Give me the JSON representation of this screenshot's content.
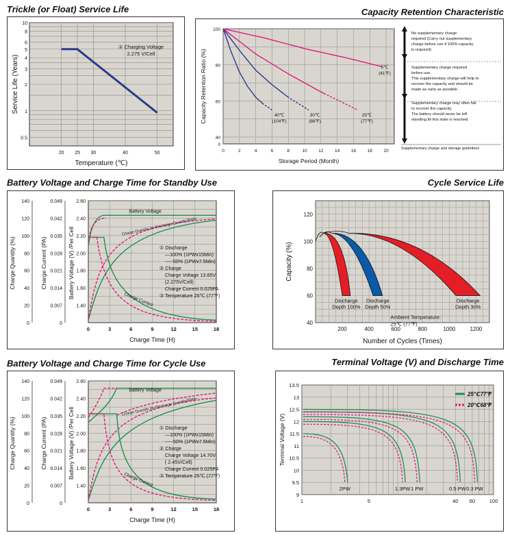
{
  "colors": {
    "plot_bg": "#d9d6cf",
    "grid": "#888888",
    "blue": "#2b3a8c",
    "pink": "#e0197d",
    "green": "#1f8f4e",
    "red": "#e41e26",
    "cs_blue": "#0a5aa8"
  },
  "titles": {
    "trickle": "Trickle (or Float) Service Life",
    "retention": "Capacity Retention Characteristic",
    "standby": "Battery Voltage and Charge Time for Standby Use",
    "cyclelife": "Cycle Service Life",
    "cycleuse": "Battery Voltage and Charge Time for Cycle Use",
    "terminal": "Terminal Voltage (V) and Discharge Time"
  },
  "chart_data": [
    {
      "id": "trickle",
      "type": "line",
      "title": "Trickle (or Float) Service Life",
      "xlabel": "Temperature (℃)",
      "ylabel": "Service Life (Years)",
      "xticks": [
        "20",
        "25",
        "30",
        "40",
        "50"
      ],
      "yticks": [
        "10",
        "8",
        "6",
        "5",
        "4",
        "3",
        "2",
        "1",
        "0.5"
      ],
      "ylim": [
        0.4,
        10
      ],
      "yscale": "log",
      "x": [
        20,
        25,
        50
      ],
      "y": [
        5,
        5,
        0.95
      ],
      "annotation": {
        "marker": "①",
        "line1": "Charging Voltage",
        "line2": "2.275 V/Cell"
      }
    },
    {
      "id": "retention",
      "type": "line",
      "title": "Capacity Retention Characteristic",
      "xlabel": "Storage Period (Month)",
      "ylabel": "Capacity Retention Ratio (%)",
      "xticks": [
        "0",
        "2",
        "4",
        "6",
        "8",
        "10",
        "12",
        "14",
        "16",
        "18",
        "20"
      ],
      "yticks": [
        "100",
        "80",
        "60",
        "40",
        "0"
      ],
      "series": [
        {
          "name": "40℃ (104℉)",
          "label1": "40℃",
          "label2": "(104℉)",
          "x": [
            0,
            1,
            2,
            3,
            4,
            5,
            6
          ],
          "y": [
            100,
            87,
            76,
            68,
            62,
            58,
            55
          ]
        },
        {
          "name": "30℃ (86℉)",
          "label1": "30℃",
          "label2": "(86℉)",
          "x": [
            0,
            2,
            4,
            6,
            8,
            10.5
          ],
          "y": [
            100,
            88,
            77,
            69,
            62,
            55
          ]
        },
        {
          "name": "25℃ (77℉)",
          "label1": "25℃",
          "label2": "(77℉)",
          "x": [
            0,
            4,
            8,
            12,
            16.5
          ],
          "y": [
            100,
            86,
            75,
            65,
            55
          ]
        },
        {
          "name": "5℃ (41℉)",
          "label1": "5℃",
          "label2": "(41℉)",
          "x": [
            0,
            5,
            10,
            15,
            19.5
          ],
          "y": [
            100,
            95,
            89,
            84,
            79
          ]
        }
      ],
      "legend": {
        "box1": [
          "No supplementary charge",
          "required (Carry out supplementary",
          "charge before use if 100% capacity",
          "is required)"
        ],
        "box2": [
          "Supplementary charge required",
          "before use.",
          "This supplementary charge will help to",
          "recover  the capacity and should be",
          "made as early as possible."
        ],
        "box3": [
          "Supplementary charge may often fail",
          "to recover the capacity.",
          "The battery should never be left",
          "standing till this state is reached."
        ],
        "footer": "Supplementary charge and storage guidelines"
      }
    },
    {
      "id": "standby",
      "type": "line",
      "title": "Battery Voltage and Charge Time for Standby Use",
      "xlabel": "Charge Time (H)",
      "ylabels": [
        "Charge Quantity (%)",
        "Charge Current (PA)",
        "Battery Voltage (V) /Per Cell"
      ],
      "xticks": [
        "0",
        "3",
        "6",
        "9",
        "12",
        "15",
        "18"
      ],
      "ticks_quantity": [
        "140",
        "120",
        "100",
        "80",
        "60",
        "40",
        "20",
        "0"
      ],
      "ticks_current": [
        "0.049",
        "0.042",
        "0.035",
        "0.028",
        "0.021",
        "0.014",
        "0.007",
        "0"
      ],
      "ticks_voltage": [
        "2.60",
        "2.40",
        "2.20",
        "2.00",
        "1.80",
        "1.60",
        "1.40"
      ],
      "curve_labels": {
        "voltage": "Battery Voltage",
        "quantity": "Charge Quantity (to-Discharge Quantity)Ratio",
        "current": "Charge Current"
      },
      "notes": [
        "① Discharge",
        "—100% (1PWx15Min)",
        "-----50% (1PWx7.5Min)",
        "② Charge",
        "Charge Voltage 13.65V",
        "(2.275V/Cell)",
        "Charge Current 0.025PA",
        "③ Temperature 25℃ (77℉)"
      ]
    },
    {
      "id": "cyclelife",
      "type": "area",
      "title": "Cycle Service Life",
      "xlabel": "Number of Cycles (Times)",
      "ylabel": "Capacity (%)",
      "xticks": [
        "200",
        "400",
        "600",
        "800",
        "1000",
        "1200"
      ],
      "yticks": [
        "120",
        "100",
        "80",
        "60",
        "40"
      ],
      "bands": [
        {
          "name": "Discharge Depth 100%",
          "label1": "Discharge",
          "label2": "Depth 100%",
          "end_cycles_min": 200,
          "end_cycles_max": 260
        },
        {
          "name": "Discharge Depth 50%",
          "label1": "Discharge",
          "label2": "Depth 50%",
          "end_cycles_min": 430,
          "end_cycles_max": 500
        },
        {
          "name": "Discharge Depth 30%",
          "label1": "Discharge",
          "label2": "Depth 30%",
          "end_cycles_min": 1050,
          "end_cycles_max": 1230
        }
      ],
      "annotation": {
        "line1": "Ambient Temperature:",
        "line2": "25℃  (77℉)"
      }
    },
    {
      "id": "cycleuse",
      "type": "line",
      "title": "Battery Voltage and Charge Time for Cycle Use",
      "xlabel": "Charge Time (H)",
      "ylabels": [
        "Charge Quantity (%)",
        "Charge Current (PA)",
        "Battery Voltage (V) /Per Cell"
      ],
      "xticks": [
        "0",
        "3",
        "6",
        "9",
        "12",
        "15",
        "18"
      ],
      "ticks_quantity": [
        "140",
        "120",
        "100",
        "80",
        "60",
        "40",
        "20",
        "0"
      ],
      "ticks_current": [
        "0.049",
        "0.042",
        "0.035",
        "0.028",
        "0.021",
        "0.014",
        "0.007",
        "0"
      ],
      "ticks_voltage": [
        "2.60",
        "2.40",
        "2.20",
        "2.00",
        "1.80",
        "1.60",
        "1.40"
      ],
      "curve_labels": {
        "voltage": "Battery Voltage",
        "quantity": "Charge Quantity (to-Discharge Quantity)Ratio",
        "current": "Charge Current"
      },
      "notes": [
        "① Discharge",
        "—100% (1PWx15Min)",
        "-----50% (1PWx7.5Min)",
        "② Charge",
        "Charge Voltage 14.70V",
        "( 2.45V/Cell)",
        "Charge Current 0.025PA",
        "③ Temperature 25℃ (77℉)"
      ]
    },
    {
      "id": "terminal",
      "type": "line",
      "title": "Terminal Voltage (V) and Discharge Time",
      "ylabel": "Terminal Voltage (V)",
      "yticks": [
        "13.5",
        "13",
        "12.5",
        "12",
        "11.5",
        "11",
        "10.5",
        "10",
        "9.5",
        "9"
      ],
      "xticks": [
        "1",
        "5",
        "40",
        "60",
        "100"
      ],
      "curve_labels": [
        "2PW",
        "1.3PW",
        "1 PW",
        "0.5 PW",
        "0.3 PW"
      ],
      "legend": [
        "25℃77℉",
        "20℃68℉"
      ]
    }
  ]
}
